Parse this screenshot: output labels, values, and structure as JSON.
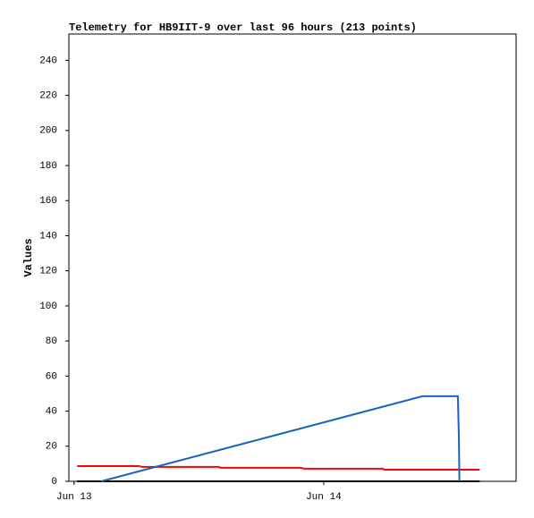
{
  "chart_data": {
    "type": "line",
    "title": "Telemetry for HB9IIT-9 over last 96 hours (213 points)",
    "y_label": "Values",
    "xlim": [
      -0.5,
      42.5
    ],
    "xticks": [
      {
        "value": 0,
        "label": "Jun 13"
      },
      {
        "value": 24,
        "label": "Jun 14"
      }
    ],
    "ylim": [
      0,
      255
    ],
    "yticks": [
      0,
      20,
      40,
      60,
      80,
      100,
      120,
      140,
      160,
      180,
      200,
      220,
      240
    ],
    "series": [
      {
        "color": "#000000",
        "x": [
          0.3,
          39
        ],
        "values": [
          0,
          0
        ]
      },
      {
        "color": "#ff0000",
        "x": [
          0.3,
          6.2,
          6.6,
          13.9,
          14.1,
          21.8,
          22.1,
          29.7,
          29.8,
          39
        ],
        "values": [
          8.7,
          8.7,
          8.2,
          8.2,
          7.7,
          7.7,
          7.2,
          7.2,
          6.6,
          6.6
        ]
      },
      {
        "color": "#1565c0",
        "x": [
          2.6,
          33.5,
          36.9,
          37.0,
          37.05
        ],
        "values": [
          0,
          48.5,
          48.5,
          24.5,
          0
        ]
      }
    ]
  }
}
